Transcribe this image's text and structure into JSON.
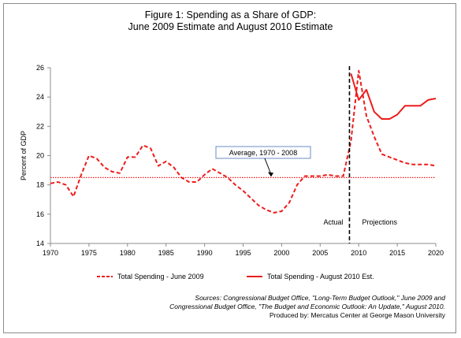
{
  "title": {
    "line1": "Figure 1: Spending as a Share of GDP:",
    "line2": "June 2009 Estimate and August 2010 Estimate"
  },
  "colors": {
    "series": "#ee1c1c",
    "divider": "#000000",
    "axis": "#8c8c8c"
  },
  "sources": {
    "line1": "Sources: Congressional Budget Office, \"Long-Term Budget Outlook,\" June 2009 and",
    "line2": "Congressional Budget Office, \"The Budget and Economic Outlook: An Update,\" August 2010.",
    "line3": "Produced by: Mercatus Center at George Mason University"
  },
  "chart_data": {
    "type": "line",
    "title": "Figure 1: Spending as a Share of GDP: June 2009 Estimate and August 2010 Estimate",
    "xlabel": "",
    "ylabel": "Percent of GDP",
    "xlim": [
      1970,
      2020
    ],
    "ylim": [
      14,
      26
    ],
    "x_ticks": [
      1970,
      1975,
      1980,
      1985,
      1990,
      1995,
      2000,
      2005,
      2010,
      2015,
      2020
    ],
    "y_ticks": [
      14,
      16,
      18,
      20,
      22,
      24,
      26
    ],
    "grid": false,
    "legend": "bottom",
    "series": [
      {
        "name": "Total Spending - June 2009",
        "style": "dashed",
        "x": [
          1970,
          1971,
          1972,
          1973,
          1974,
          1975,
          1976,
          1977,
          1978,
          1979,
          1980,
          1981,
          1982,
          1983,
          1984,
          1985,
          1986,
          1987,
          1988,
          1989,
          1990,
          1991,
          1992,
          1993,
          1994,
          1995,
          1996,
          1997,
          1998,
          1999,
          2000,
          2001,
          2002,
          2003,
          2004,
          2005,
          2006,
          2007,
          2008,
          2009,
          2010,
          2011,
          2012,
          2013,
          2014,
          2015,
          2016,
          2017,
          2018,
          2019,
          2020
        ],
        "values": [
          18.1,
          18.2,
          18.0,
          17.2,
          18.7,
          20.0,
          19.8,
          19.2,
          18.9,
          18.8,
          19.9,
          19.9,
          20.7,
          20.5,
          19.3,
          19.6,
          19.2,
          18.5,
          18.2,
          18.2,
          18.7,
          19.1,
          18.8,
          18.5,
          18.0,
          17.6,
          17.1,
          16.6,
          16.3,
          16.1,
          16.2,
          16.8,
          18.0,
          18.6,
          18.6,
          18.6,
          18.7,
          18.6,
          18.6,
          21.0,
          25.8,
          22.7,
          21.3,
          20.1,
          19.9,
          19.7,
          19.5,
          19.4,
          19.4,
          19.4,
          19.3
        ]
      },
      {
        "name": "Total Spending - August 2010 Est.",
        "style": "solid",
        "x": [
          2009,
          2010,
          2011,
          2012,
          2013,
          2014,
          2015,
          2016,
          2017,
          2018,
          2019,
          2020
        ],
        "values": [
          25.6,
          23.8,
          24.5,
          23.0,
          22.5,
          22.5,
          22.8,
          23.4,
          23.4,
          23.4,
          23.8,
          23.9
        ]
      }
    ],
    "reference_line": {
      "label": "Average, 1970 - 2008",
      "value": 18.5
    },
    "divider": {
      "x": 2008.8
    },
    "annotations": [
      "Actual",
      "Projections"
    ]
  }
}
